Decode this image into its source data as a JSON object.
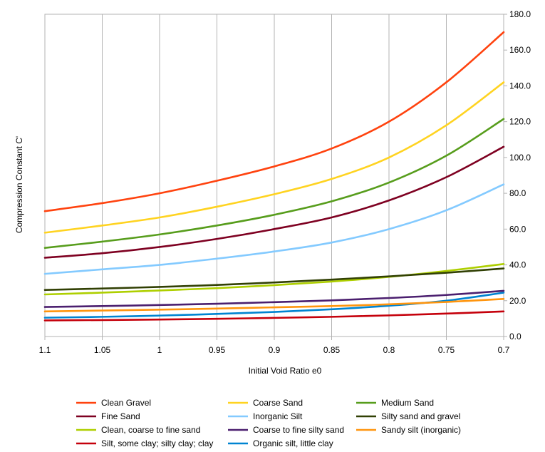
{
  "chart_data": {
    "type": "line",
    "title": "",
    "xlabel": "Initial Void Ratio e0",
    "ylabel": "Compression Constant C'",
    "x_reversed": true,
    "xlim": [
      1.1,
      0.7
    ],
    "ylim": [
      0,
      180
    ],
    "x_ticks": [
      "1.1",
      "1.05",
      "1",
      "0.95",
      "0.9",
      "0.85",
      "0.8",
      "0.75",
      "0.7"
    ],
    "x_tick_values": [
      1.1,
      1.05,
      1.0,
      0.95,
      0.9,
      0.85,
      0.8,
      0.75,
      0.7
    ],
    "y_ticks": [
      "0.0",
      "20.0",
      "40.0",
      "60.0",
      "80.0",
      "100.0",
      "120.0",
      "140.0",
      "160.0",
      "180.0"
    ],
    "y_tick_values": [
      0,
      20,
      40,
      60,
      80,
      100,
      120,
      140,
      160,
      180
    ],
    "grid": "vertical",
    "legend_position": "bottom",
    "x": [
      1.1,
      1.05,
      1.0,
      0.95,
      0.9,
      0.85,
      0.8,
      0.75,
      0.7
    ],
    "series": [
      {
        "name": "Clean Gravel",
        "color": "#ff420e",
        "values": [
          70,
          74.5,
          80,
          87,
          95,
          105,
          120,
          142,
          170
        ]
      },
      {
        "name": "Coarse Sand",
        "color": "#ffd320",
        "values": [
          58,
          62,
          66.5,
          72.5,
          79.5,
          88,
          100,
          118,
          142
        ]
      },
      {
        "name": "Medium Sand",
        "color": "#579d1c",
        "values": [
          49.5,
          53,
          57,
          62,
          68,
          75.5,
          86,
          101,
          121.5
        ]
      },
      {
        "name": "Fine Sand",
        "color": "#7e0021",
        "values": [
          44,
          46.5,
          50,
          54.5,
          60,
          66.5,
          76,
          89,
          106
        ]
      },
      {
        "name": "Inorganic Silt",
        "color": "#83caff",
        "values": [
          35,
          37.5,
          40,
          43.5,
          47.5,
          52.5,
          60,
          70.5,
          85
        ]
      },
      {
        "name": "Silty sand and gravel",
        "color": "#314004",
        "values": [
          26,
          26.8,
          27.7,
          28.8,
          30.2,
          31.8,
          33.6,
          35.6,
          38
        ]
      },
      {
        "name": "Clean, coarse to fine sand",
        "color": "#aecf00",
        "values": [
          23.5,
          24.5,
          25.7,
          27,
          28.7,
          30.7,
          33.3,
          36.6,
          40.5
        ]
      },
      {
        "name": "Coarse to fine silty sand",
        "color": "#4b1f6f",
        "values": [
          16.5,
          17,
          17.6,
          18.3,
          19.2,
          20.2,
          21.5,
          23.2,
          25.5
        ]
      },
      {
        "name": "Sandy silt (inorganic)",
        "color": "#ff950e",
        "values": [
          14,
          14.5,
          15,
          15.6,
          16.3,
          17,
          18,
          19.3,
          21
        ]
      },
      {
        "name": "Silt, some clay; silty clay; clay",
        "color": "#c5000b",
        "values": [
          9,
          9.2,
          9.5,
          9.9,
          10.4,
          11,
          11.8,
          12.8,
          14
        ]
      },
      {
        "name": "Organic silt, little clay",
        "color": "#0084d1",
        "values": [
          10.5,
          11,
          11.7,
          12.6,
          13.7,
          15.2,
          17.2,
          20,
          24.5
        ]
      }
    ]
  }
}
